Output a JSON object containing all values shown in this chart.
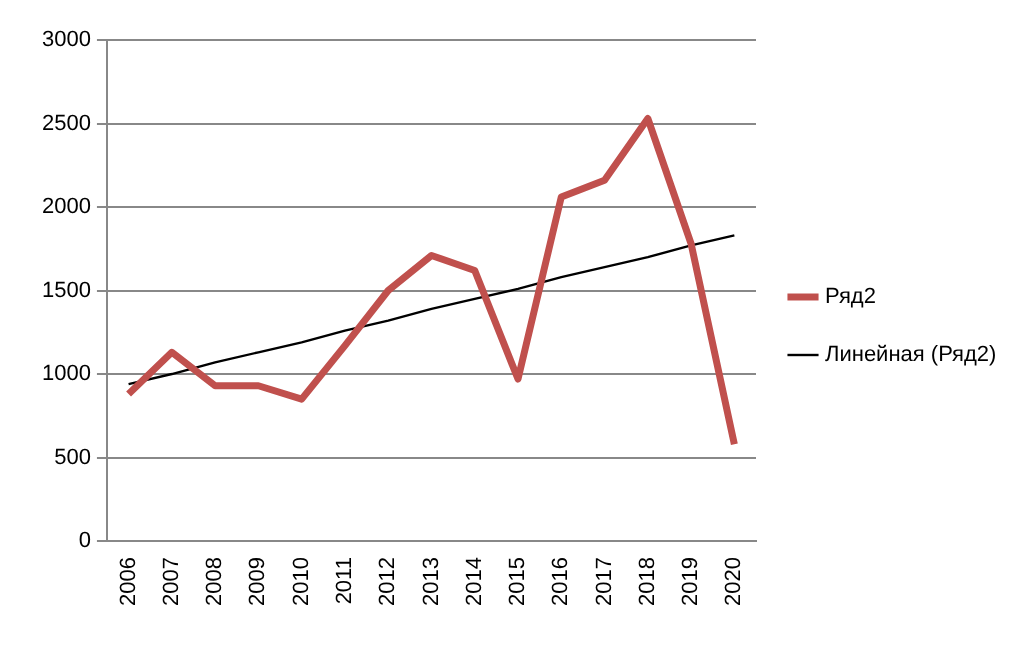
{
  "chart_data": {
    "type": "line",
    "categories": [
      "2006",
      "2007",
      "2008",
      "2009",
      "2010",
      "2011",
      "2012",
      "2013",
      "2014",
      "2015",
      "2016",
      "2017",
      "2018",
      "2019",
      "2020"
    ],
    "series": [
      {
        "name": "Ряд2",
        "color": "#c0504d",
        "values": [
          880,
          1130,
          930,
          930,
          850,
          1170,
          1500,
          1710,
          1620,
          970,
          2060,
          2160,
          2530,
          1780,
          580
        ]
      },
      {
        "name": "Линейная (Ряд2)",
        "type": "line",
        "color": "#000000",
        "values": [
          940,
          1000,
          1070,
          1130,
          1190,
          1260,
          1320,
          1390,
          1450,
          1510,
          1580,
          1640,
          1700,
          1770,
          1830
        ]
      }
    ],
    "ylim": [
      0,
      3000
    ],
    "yticks": [
      0,
      500,
      1000,
      1500,
      2000,
      2500,
      3000
    ],
    "grid": "y",
    "legend": "right",
    "marker": "none",
    "line_style": "solid"
  }
}
